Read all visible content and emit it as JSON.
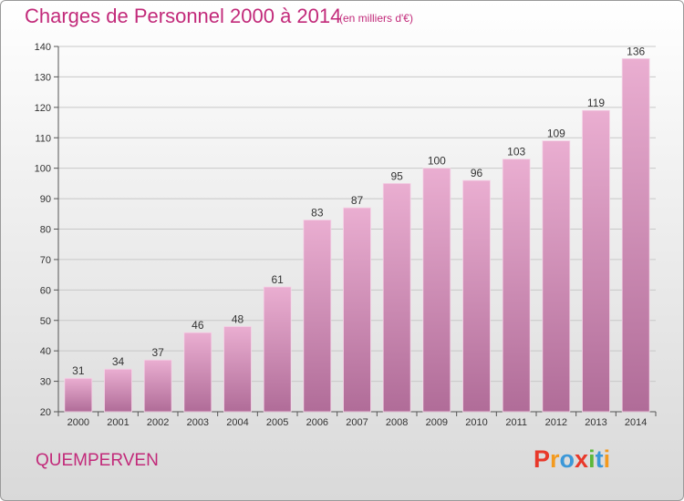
{
  "header": {
    "title": "Charges de Personnel 2000 à 2014",
    "subtitle": "(en milliers d'€)"
  },
  "footer": {
    "commune": "QUEMPERVEN",
    "logo": "Proxiti"
  },
  "colors": {
    "title": "#c22a7a",
    "bar_top": "#eaaed1",
    "bar_bottom": "#b06c98",
    "logo_letters": [
      "#e8382a",
      "#f39a1e",
      "#3c98d8",
      "#e8382a",
      "#5cb83a",
      "#3c98d8",
      "#f39a1e"
    ]
  },
  "chart_data": {
    "type": "bar",
    "categories": [
      "2000",
      "2001",
      "2002",
      "2003",
      "2004",
      "2005",
      "2006",
      "2007",
      "2008",
      "2009",
      "2010",
      "2011",
      "2012",
      "2013",
      "2014"
    ],
    "values": [
      31,
      34,
      37,
      46,
      48,
      61,
      83,
      87,
      95,
      100,
      96,
      103,
      109,
      119,
      136
    ],
    "data_labels": [
      "31",
      "34",
      "37",
      "46",
      "48",
      "61",
      "83",
      "87",
      "95",
      "100",
      "96",
      "103",
      "109",
      "119",
      "136"
    ],
    "title": "Charges de Personnel 2000 à 2014",
    "xlabel": "",
    "ylabel": "",
    "ylim": [
      20,
      140
    ],
    "yticks": [
      20,
      30,
      40,
      50,
      60,
      70,
      80,
      90,
      100,
      110,
      120,
      130,
      140
    ],
    "grid": true,
    "legend": "none"
  }
}
